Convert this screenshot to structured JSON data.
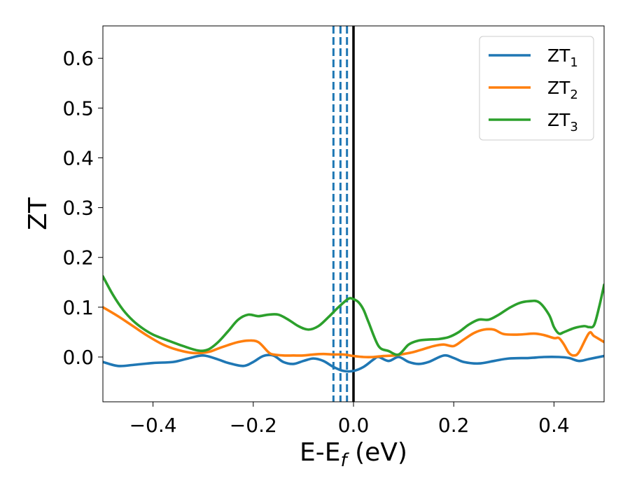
{
  "chart_data": {
    "type": "line",
    "title": "",
    "xlabel": "E-E",
    "xlabel_sub": "f",
    "xlabel_unit": " (eV)",
    "ylabel": "ZT",
    "xlim": [
      -0.5,
      0.5
    ],
    "ylim": [
      -0.09,
      0.665
    ],
    "xticks": [
      -0.4,
      -0.2,
      0.0,
      0.2,
      0.4
    ],
    "xtick_labels": [
      "−0.4",
      "−0.2",
      "0.0",
      "0.2",
      "0.4"
    ],
    "yticks": [
      0.0,
      0.1,
      0.2,
      0.3,
      0.4,
      0.5,
      0.6
    ],
    "ytick_labels": [
      "0.0",
      "0.1",
      "0.2",
      "0.3",
      "0.4",
      "0.5",
      "0.6"
    ],
    "legend_position": "top-right",
    "vlines": [
      {
        "x": -0.04,
        "style": "dashed",
        "color": "#1f77b4"
      },
      {
        "x": -0.026,
        "style": "dashed",
        "color": "#1f77b4"
      },
      {
        "x": -0.013,
        "style": "dashed",
        "color": "#1f77b4"
      },
      {
        "x": 0.0,
        "style": "solid",
        "color": "#000000"
      }
    ],
    "series": [
      {
        "name": "ZT",
        "sub": "1",
        "color": "#1f77b4",
        "x": [
          -0.5,
          -0.47,
          -0.44,
          -0.4,
          -0.36,
          -0.33,
          -0.3,
          -0.27,
          -0.25,
          -0.22,
          -0.2,
          -0.18,
          -0.16,
          -0.14,
          -0.12,
          -0.1,
          -0.08,
          -0.06,
          -0.04,
          -0.02,
          0.0,
          0.02,
          0.04,
          0.05,
          0.07,
          0.09,
          0.11,
          0.13,
          0.15,
          0.18,
          0.2,
          0.22,
          0.25,
          0.28,
          0.31,
          0.35,
          0.38,
          0.41,
          0.43,
          0.45,
          0.47,
          0.5
        ],
        "y": [
          -0.01,
          -0.018,
          -0.016,
          -0.012,
          -0.01,
          -0.003,
          0.003,
          -0.005,
          -0.012,
          -0.018,
          -0.01,
          0.002,
          0.003,
          -0.01,
          -0.014,
          -0.008,
          -0.003,
          -0.008,
          -0.02,
          -0.028,
          -0.028,
          -0.02,
          -0.005,
          0.0,
          -0.008,
          0.0,
          -0.01,
          -0.014,
          -0.01,
          0.003,
          -0.002,
          -0.01,
          -0.013,
          -0.008,
          -0.003,
          -0.002,
          0.0,
          0.0,
          -0.002,
          -0.008,
          -0.004,
          0.002
        ]
      },
      {
        "name": "ZT",
        "sub": "2",
        "color": "#ff7f0e",
        "x": [
          -0.5,
          -0.47,
          -0.44,
          -0.41,
          -0.38,
          -0.35,
          -0.32,
          -0.29,
          -0.27,
          -0.25,
          -0.23,
          -0.21,
          -0.19,
          -0.17,
          -0.16,
          -0.14,
          -0.12,
          -0.1,
          -0.08,
          -0.06,
          -0.04,
          -0.02,
          0.0,
          0.02,
          0.04,
          0.06,
          0.08,
          0.1,
          0.12,
          0.14,
          0.16,
          0.18,
          0.2,
          0.22,
          0.24,
          0.26,
          0.28,
          0.3,
          0.33,
          0.36,
          0.38,
          0.4,
          0.41,
          0.42,
          0.43,
          0.44,
          0.45,
          0.47,
          0.48,
          0.5
        ],
        "y": [
          0.1,
          0.082,
          0.062,
          0.042,
          0.025,
          0.014,
          0.008,
          0.01,
          0.017,
          0.024,
          0.03,
          0.033,
          0.03,
          0.01,
          0.005,
          0.003,
          0.003,
          0.003,
          0.005,
          0.006,
          0.005,
          0.005,
          0.002,
          0.0,
          0.0,
          0.002,
          0.003,
          0.006,
          0.01,
          0.016,
          0.022,
          0.025,
          0.022,
          0.035,
          0.048,
          0.055,
          0.055,
          0.046,
          0.045,
          0.047,
          0.044,
          0.038,
          0.038,
          0.025,
          0.008,
          0.003,
          0.01,
          0.048,
          0.042,
          0.03
        ]
      },
      {
        "name": "ZT",
        "sub": "3",
        "color": "#2ca02c",
        "x": [
          -0.5,
          -0.48,
          -0.46,
          -0.44,
          -0.42,
          -0.4,
          -0.37,
          -0.34,
          -0.31,
          -0.29,
          -0.27,
          -0.25,
          -0.23,
          -0.21,
          -0.19,
          -0.17,
          -0.15,
          -0.13,
          -0.11,
          -0.09,
          -0.07,
          -0.05,
          -0.03,
          -0.01,
          0.0,
          0.01,
          0.02,
          0.03,
          0.05,
          0.07,
          0.09,
          0.11,
          0.13,
          0.15,
          0.17,
          0.19,
          0.21,
          0.23,
          0.25,
          0.27,
          0.29,
          0.31,
          0.33,
          0.35,
          0.37,
          0.39,
          0.4,
          0.41,
          0.42,
          0.44,
          0.46,
          0.47,
          0.48,
          0.49,
          0.5
        ],
        "y": [
          0.162,
          0.125,
          0.095,
          0.073,
          0.057,
          0.045,
          0.033,
          0.022,
          0.013,
          0.015,
          0.03,
          0.052,
          0.075,
          0.085,
          0.082,
          0.085,
          0.085,
          0.075,
          0.062,
          0.055,
          0.062,
          0.08,
          0.1,
          0.117,
          0.116,
          0.11,
          0.095,
          0.07,
          0.022,
          0.012,
          0.005,
          0.025,
          0.033,
          0.035,
          0.036,
          0.04,
          0.05,
          0.065,
          0.075,
          0.075,
          0.085,
          0.098,
          0.108,
          0.112,
          0.11,
          0.085,
          0.06,
          0.047,
          0.05,
          0.058,
          0.062,
          0.06,
          0.064,
          0.1,
          0.145
        ]
      }
    ]
  }
}
